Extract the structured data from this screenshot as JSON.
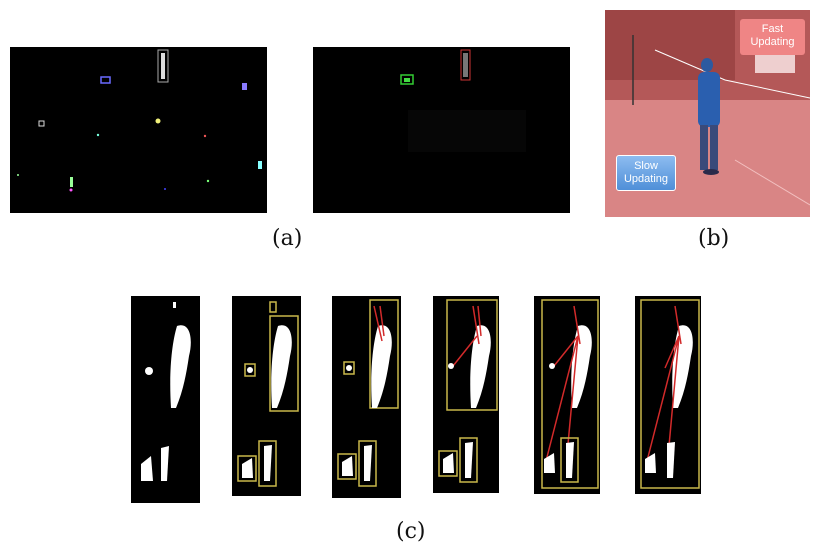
{
  "figure": {
    "panels": {
      "a": {
        "caption": "(a)"
      },
      "b": {
        "caption": "(b)",
        "fast_label": "Fast\nUpdating",
        "slow_label": "Slow\nUpdating"
      },
      "c": {
        "caption": "(c)"
      }
    },
    "colors": {
      "background": "#000000",
      "overlay_red": "#e06a6a",
      "box_yellow": "#c9b84a",
      "line_red": "#d22a2a",
      "fast_box": "#ee7f7f",
      "slow_box": "#6fa8e6"
    }
  }
}
